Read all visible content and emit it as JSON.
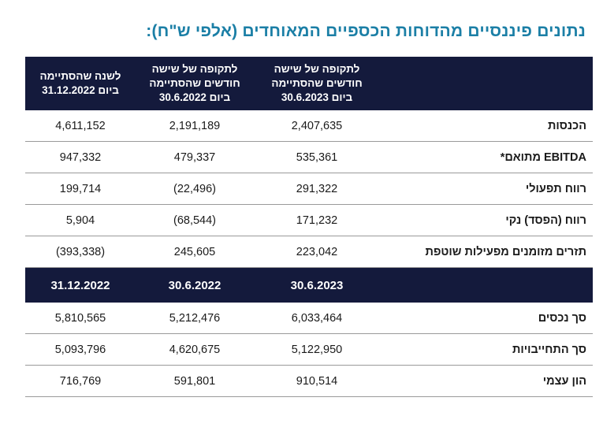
{
  "title": "נתונים פיננסיים מהדוחות הכספיים המאוחדים (אלפי ש\"ח):",
  "header": {
    "col1": [
      "לתקופה של שישה",
      "חודשים שהסתיימה",
      "ביום 30.6.2023"
    ],
    "col2": [
      "לתקופה של שישה",
      "חודשים שהסתיימה",
      "ביום 30.6.2022"
    ],
    "col3": [
      "לשנה שהסתיימה",
      "ביום 31.12.2022"
    ]
  },
  "rows_top": [
    {
      "label": "הכנסות",
      "v1": "2,407,635",
      "v2": "2,191,189",
      "v3": "4,611,152"
    },
    {
      "label": "EBITDA מתואם*",
      "v1": "535,361",
      "v2": "479,337",
      "v3": "947,332"
    },
    {
      "label": "רווח תפעולי",
      "v1": "291,322",
      "v2": "(22,496)",
      "v3": "199,714"
    },
    {
      "label": "רווח (הפסד) נקי",
      "v1": "171,232",
      "v2": "(68,544)",
      "v3": "5,904"
    },
    {
      "label": "תזרים מזומנים מפעילות שוטפת",
      "v1": "223,042",
      "v2": "245,605",
      "v3": "(393,338)"
    }
  ],
  "date_row": {
    "d1": "30.6.2023",
    "d2": "30.6.2022",
    "d3": "31.12.2022"
  },
  "rows_bottom": [
    {
      "label": "סך נכסים",
      "v1": "6,033,464",
      "v2": "5,212,476",
      "v3": "5,810,565"
    },
    {
      "label": "סך התחייבויות",
      "v1": "5,122,950",
      "v2": "4,620,675",
      "v3": "5,093,796"
    },
    {
      "label": "הון עצמי",
      "v1": "910,514",
      "v2": "591,801",
      "v3": "716,769"
    }
  ]
}
